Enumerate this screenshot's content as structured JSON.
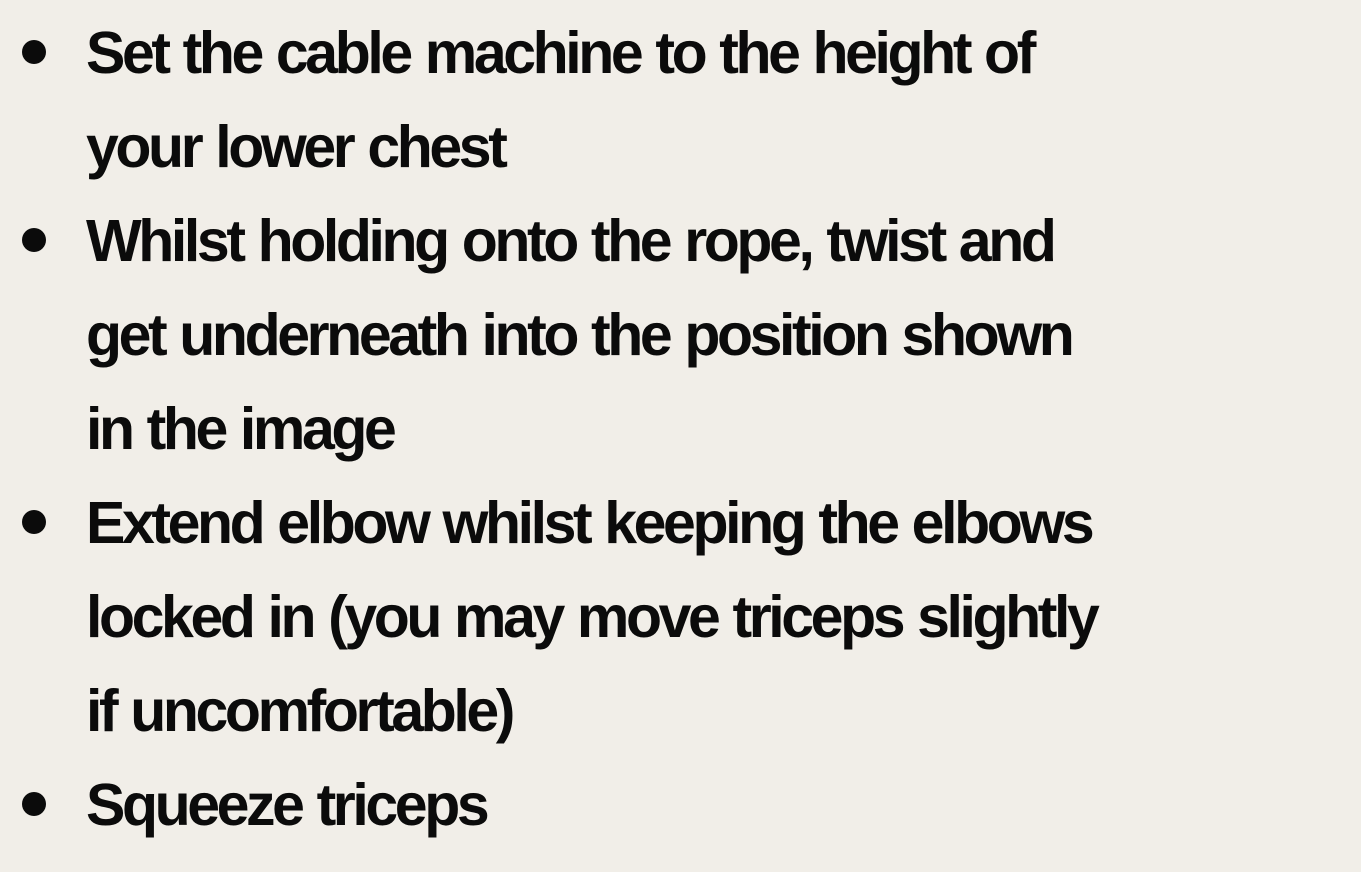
{
  "instructions": {
    "steps": [
      {
        "lines": [
          "Set the cable machine to the height of",
          "your lower chest"
        ]
      },
      {
        "lines": [
          "Whilst holding onto the rope, twist and",
          "get underneath into the position shown",
          "in the image"
        ]
      },
      {
        "lines": [
          "Extend elbow whilst keeping the elbows",
          "locked in (you may move triceps slightly",
          "if uncomfortable)"
        ]
      },
      {
        "lines": [
          "Squeeze triceps"
        ]
      }
    ]
  },
  "colors": {
    "background": "#f1eee8",
    "text": "#0b0b0b"
  }
}
